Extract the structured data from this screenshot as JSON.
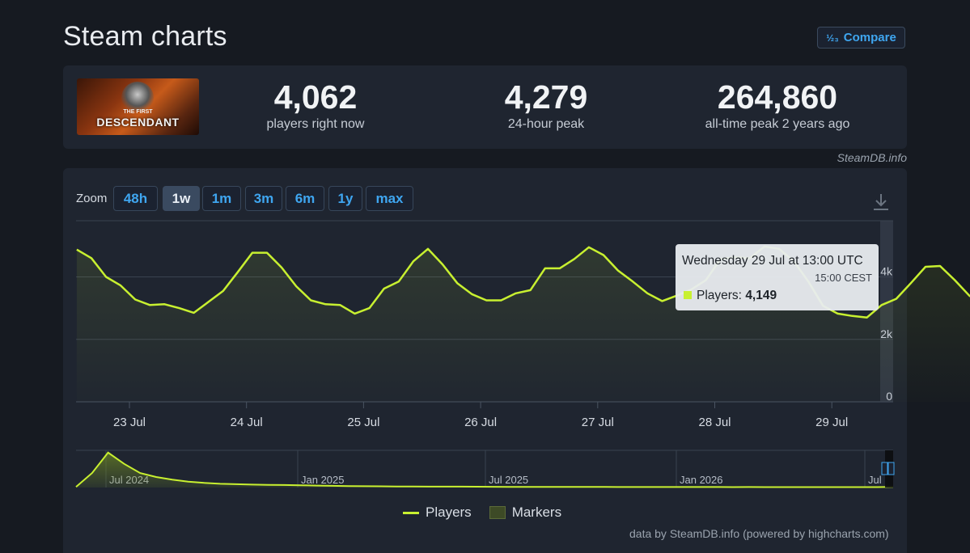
{
  "page": {
    "title": "Steam charts",
    "compare_label": "Compare",
    "compare_icon": "compare-icon"
  },
  "stats": {
    "game_logo_text": "THE FIRST",
    "game_logo_main": "DESCENDANT",
    "players_now": "4,062",
    "players_now_label": "players right now",
    "peak_24h": "4,279",
    "peak_24h_label": "24-hour peak",
    "all_time_peak": "264,860",
    "all_time_peak_label": "all-time peak 2 years ago"
  },
  "credit_top": "SteamDB.info",
  "zoom": {
    "label": "Zoom",
    "options": [
      "48h",
      "1w",
      "1m",
      "3m",
      "6m",
      "1y",
      "max"
    ],
    "active": "1w"
  },
  "tooltip": {
    "date": "Wednesday 29 Jul at 13:00 UTC",
    "local": "15:00 CEST",
    "series": "Players:",
    "value": "4,149"
  },
  "chart_data": {
    "type": "line",
    "colors": {
      "players": "#c8f030",
      "grid": "#3a4350",
      "axis_text": "#d6dbe2"
    },
    "x_labels": [
      "23 Jul",
      "24 Jul",
      "25 Jul",
      "26 Jul",
      "27 Jul",
      "28 Jul",
      "29 Jul"
    ],
    "y_ticks": [
      0,
      2000,
      4000
    ],
    "y_tick_labels": [
      "0",
      "2k",
      "4k"
    ],
    "ylim": [
      0,
      5800
    ],
    "grid": true,
    "series": [
      {
        "name": "Players",
        "x_start_day": 22.55,
        "step_hours": 3,
        "values": [
          4875,
          4600,
          4000,
          3725,
          3275,
          3100,
          3125,
          3000,
          2850,
          3200,
          3550,
          4150,
          4775,
          4775,
          4300,
          3700,
          3250,
          3125,
          3100,
          2825,
          3000,
          3625,
          3850,
          4500,
          4900,
          4400,
          3800,
          3450,
          3250,
          3250,
          3475,
          3575,
          4275,
          4275,
          4575,
          4950,
          4700,
          4200,
          3850,
          3475,
          3225,
          3400,
          3600,
          3900,
          4575,
          4625,
          4600,
          4975,
          4900,
          4500,
          3850,
          3075,
          2825,
          2750,
          2700,
          3100,
          3300,
          3800,
          4325,
          4350,
          3900,
          3400,
          3100,
          2925,
          2925,
          2750,
          3000,
          3250,
          3950,
          4100,
          4149,
          3950,
          3450,
          2900,
          2775,
          2650,
          2500,
          2375,
          2875,
          3000,
          3275,
          3825
        ]
      }
    ],
    "navigator": {
      "x_labels": [
        "Jul 2024",
        "Jan 2025",
        "Jul 2025",
        "Jan 2026",
        "Jul"
      ],
      "values": [
        5000,
        110000,
        264860,
        180000,
        110000,
        80000,
        60000,
        45000,
        35000,
        28000,
        25000,
        22000,
        20000,
        19000,
        17000,
        15000,
        13000,
        11000,
        10000,
        9000,
        8000,
        7500,
        7000,
        7000,
        6500,
        6000,
        5500,
        5000,
        4800,
        4500,
        4200,
        4000,
        4100,
        4000,
        3800,
        3800,
        3700,
        3600,
        3500,
        3500,
        3400,
        3300,
        3400,
        3200,
        3200,
        3100,
        3100,
        3000,
        3000,
        3100,
        3000,
        4000
      ],
      "ylim": [
        0,
        270000
      ]
    }
  },
  "legend": {
    "players_label": "Players",
    "markers_label": "Markers"
  },
  "credit_bottom": "data by SteamDB.info (powered by highcharts.com)"
}
